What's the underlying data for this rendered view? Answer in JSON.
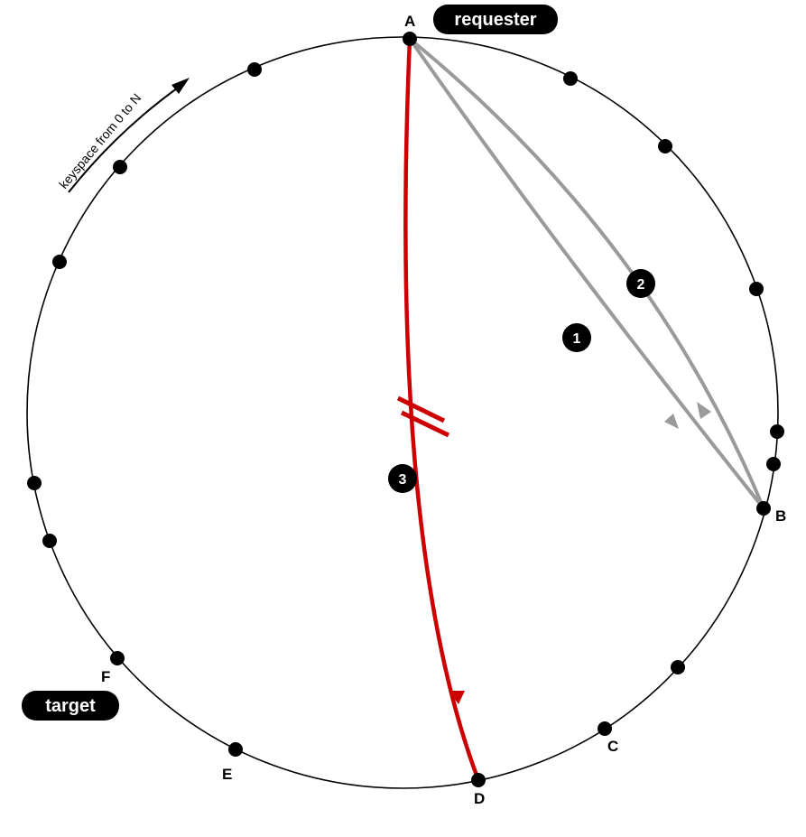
{
  "keyspace_label": "keyspace from 0 to N",
  "pills": {
    "requester": "requester",
    "target": "target"
  },
  "nodes": {
    "A": "A",
    "B": "B",
    "C": "C",
    "D": "D",
    "E": "E",
    "F": "F"
  },
  "steps": {
    "one": "1",
    "two": "2",
    "three": "3"
  },
  "colors": {
    "ring": "#000000",
    "node": "#000000",
    "gray_path": "#999999",
    "red_path": "#cc0000",
    "pill_bg": "#000000"
  },
  "icons": {
    "keyspace_arrow": "arrow-head-icon",
    "break_mark": "double-slash-break-icon"
  }
}
